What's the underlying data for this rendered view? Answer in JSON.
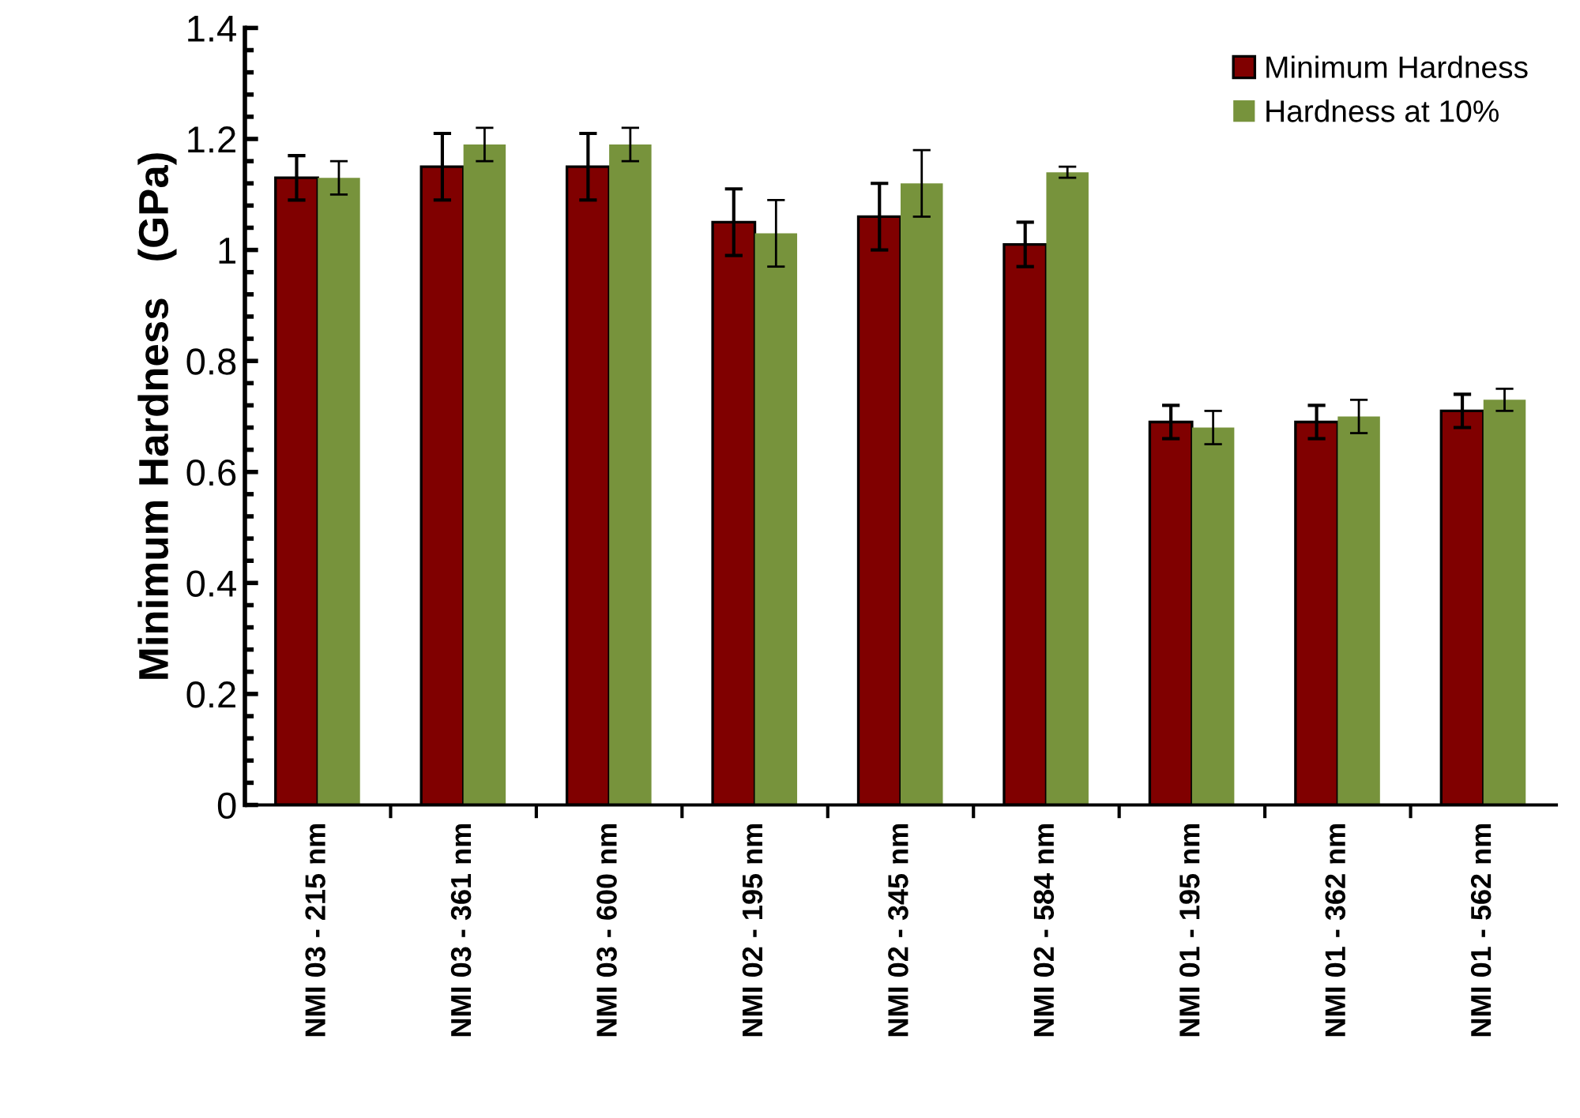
{
  "chart_data": {
    "type": "bar",
    "ylabel": "Minimum Hardness   (GPa)",
    "categories": [
      "NMI 03 - 215 nm",
      "NMI 03 - 361 nm",
      "NMI 03 - 600 nm",
      "NMI 02 - 195 nm",
      "NMI 02 - 345 nm",
      "NMI 02 - 584 nm",
      "NMI 01 - 195 nm",
      "NMI 01 - 362 nm",
      "NMI 01 - 562 nm"
    ],
    "series": [
      {
        "name": "Minimum Hardness",
        "color": "#800000",
        "values": [
          1.13,
          1.15,
          1.15,
          1.05,
          1.06,
          1.01,
          0.69,
          0.69,
          0.71
        ],
        "errors": [
          0.04,
          0.06,
          0.06,
          0.06,
          0.06,
          0.04,
          0.03,
          0.03,
          0.03
        ]
      },
      {
        "name": "Hardness at 10%",
        "color": "#77933c",
        "values": [
          1.13,
          1.19,
          1.19,
          1.03,
          1.12,
          1.14,
          0.68,
          0.7,
          0.73
        ],
        "errors": [
          0.03,
          0.03,
          0.03,
          0.06,
          0.06,
          0.01,
          0.03,
          0.03,
          0.02
        ]
      }
    ],
    "ylim": [
      0,
      1.4
    ],
    "yticks": [
      0,
      0.2,
      0.4,
      0.6,
      0.8,
      1,
      1.2,
      1.4
    ],
    "grid": false,
    "legend": "top right"
  }
}
